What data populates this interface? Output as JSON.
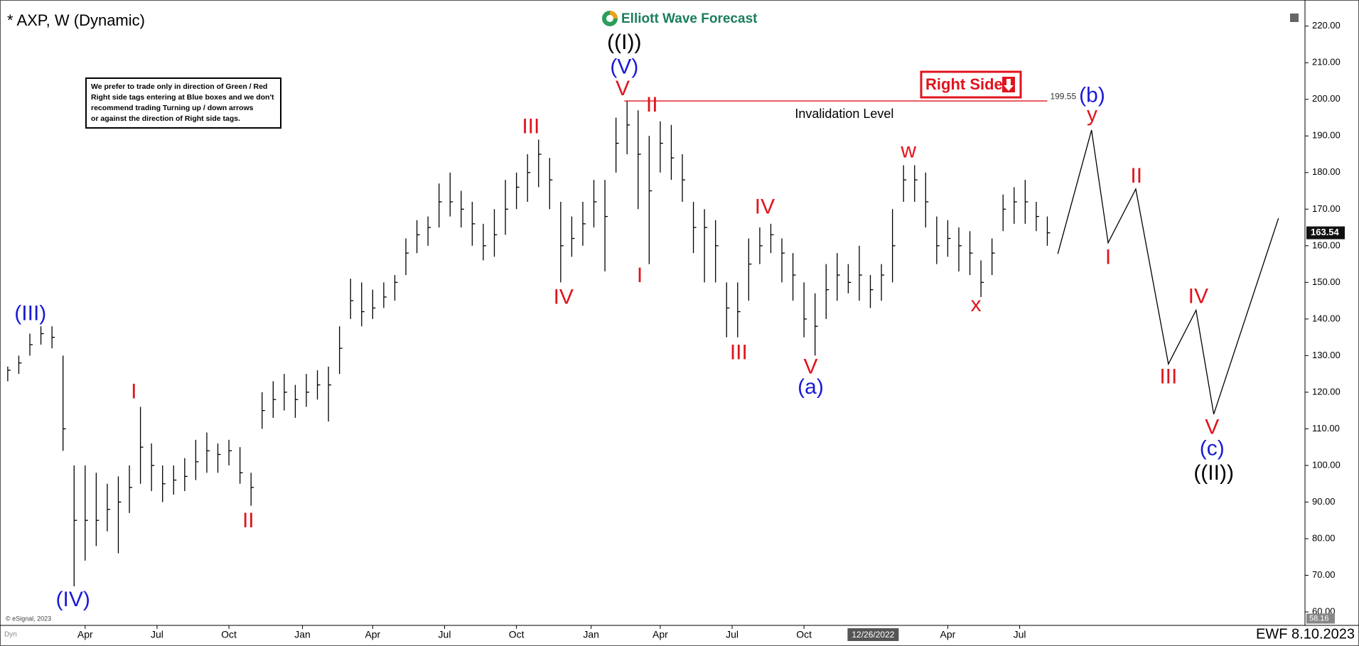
{
  "chart_data": {
    "type": "ohlc",
    "title": "* AXP, W (Dynamic)",
    "logo": "Elliott Wave Forecast",
    "footer": "EWF 8.10.2023",
    "copyright": "© eSignal, 2023",
    "corner_tag": "Dyn",
    "note": [
      "We prefer to trade only in direction of Green / Red",
      "Right side tags entering at Blue boxes and we don't",
      "recommend trading Turning up / down arrows",
      "or against the direction of Right side tags."
    ],
    "right_side_tag": "Right Side",
    "color": "#000000",
    "grid": false,
    "xlim": [
      -2.4,
      233.6
    ],
    "ylim": [
      56.7,
      224.8
    ],
    "xticks": [
      {
        "value": 13,
        "label": "Apr"
      },
      {
        "value": 26,
        "label": "Jul"
      },
      {
        "value": 39,
        "label": "Oct"
      },
      {
        "value": 52.3,
        "label": "Jan"
      },
      {
        "value": 65,
        "label": "Apr"
      },
      {
        "value": 78,
        "label": "Jul"
      },
      {
        "value": 91,
        "label": "Oct"
      },
      {
        "value": 104.5,
        "label": "Jan"
      },
      {
        "value": 117,
        "label": "Apr"
      },
      {
        "value": 130,
        "label": "Jul"
      },
      {
        "value": 143,
        "label": "Oct"
      },
      {
        "value": 169,
        "label": "Apr"
      },
      {
        "value": 182,
        "label": "Jul"
      }
    ],
    "crosshair_date": {
      "value": 155.5,
      "label": "12/26/2022"
    },
    "yticks": [
      {
        "value": 60,
        "label": "60.00"
      },
      {
        "value": 70,
        "label": "70.00"
      },
      {
        "value": 80,
        "label": "80.00"
      },
      {
        "value": 90,
        "label": "90.00"
      },
      {
        "value": 100,
        "label": "100.00"
      },
      {
        "value": 110,
        "label": "110.00"
      },
      {
        "value": 120,
        "label": "120.00"
      },
      {
        "value": 130,
        "label": "130.00"
      },
      {
        "value": 140,
        "label": "140.00"
      },
      {
        "value": 150,
        "label": "150.00"
      },
      {
        "value": 160,
        "label": "160.00"
      },
      {
        "value": 170,
        "label": "170.00"
      },
      {
        "value": 180,
        "label": "180.00"
      },
      {
        "value": 190,
        "label": "190.00"
      },
      {
        "value": 200,
        "label": "200.00"
      },
      {
        "value": 210,
        "label": "210.00"
      },
      {
        "value": 220,
        "label": "220.00"
      }
    ],
    "axis_marker": 58.16,
    "x": [
      -1,
      1,
      3,
      5,
      7,
      9,
      11,
      13,
      15,
      17,
      19,
      21,
      23,
      25,
      27,
      29,
      31,
      33,
      35,
      37,
      39,
      41,
      43,
      45,
      47,
      49,
      51,
      53,
      55,
      57,
      59,
      61,
      63,
      65,
      67,
      69,
      71,
      73,
      75,
      77,
      79,
      81,
      83,
      85,
      87,
      89,
      91,
      93,
      95,
      97,
      99,
      101,
      103,
      105,
      107,
      109,
      111,
      113,
      115,
      117,
      119,
      121,
      123,
      125,
      127,
      129,
      131,
      133,
      135,
      137,
      139,
      141,
      143,
      145,
      147,
      149,
      151,
      153,
      155,
      157,
      159,
      161,
      163,
      165,
      167,
      169,
      171,
      173,
      175,
      177,
      179,
      181,
      183,
      185,
      187
    ],
    "high": [
      127,
      130,
      136,
      138,
      138,
      130,
      100,
      100,
      98,
      95,
      97,
      100,
      116,
      106,
      100,
      100,
      102,
      107,
      109,
      106,
      107,
      105,
      98,
      120,
      123,
      125,
      122,
      125,
      126,
      127,
      138,
      151,
      150,
      148,
      150,
      152,
      162,
      167,
      168,
      177,
      180,
      175,
      172,
      166,
      170,
      178,
      180,
      185,
      189,
      184,
      172,
      168,
      172,
      178,
      178,
      195,
      199.55,
      197,
      190,
      194,
      193,
      185,
      172,
      170,
      167,
      150,
      150,
      162,
      165,
      166,
      162,
      158,
      150,
      147,
      155,
      158,
      155,
      160,
      152,
      155,
      170,
      182,
      182,
      180,
      168,
      167,
      165,
      164,
      156,
      162,
      174,
      176,
      178,
      172,
      168
    ],
    "low": [
      123,
      125,
      130,
      133,
      132,
      104,
      67,
      74,
      78,
      82,
      76,
      87,
      95,
      93,
      90,
      92,
      93,
      96,
      98,
      98,
      100,
      95,
      89,
      110,
      113,
      115,
      113,
      116,
      118,
      112,
      125,
      140,
      138,
      140,
      143,
      145,
      152,
      158,
      160,
      165,
      168,
      165,
      160,
      156,
      157,
      163,
      170,
      172,
      176,
      170,
      150,
      157,
      160,
      165,
      153,
      180,
      185,
      170,
      155,
      180,
      178,
      172,
      158,
      150,
      150,
      135,
      135,
      145,
      155,
      158,
      150,
      145,
      135,
      130,
      140,
      145,
      147,
      145,
      143,
      145,
      150,
      172,
      172,
      165,
      155,
      157,
      153,
      152,
      146,
      152,
      164,
      166,
      166,
      164,
      160
    ],
    "close": [
      126,
      128,
      133,
      136,
      135,
      110,
      85,
      85,
      85,
      88,
      90,
      94,
      105,
      100,
      95,
      96,
      97,
      101,
      104,
      103,
      104,
      98,
      94,
      115,
      118,
      120,
      118,
      120,
      122,
      122,
      132,
      145,
      142,
      143,
      146,
      150,
      158,
      163,
      165,
      172,
      172,
      170,
      166,
      160,
      163,
      170,
      176,
      180,
      185,
      178,
      160,
      162,
      166,
      172,
      168,
      188,
      193,
      185,
      175,
      188,
      184,
      178,
      165,
      165,
      160,
      143,
      142,
      155,
      160,
      163,
      158,
      152,
      140,
      138,
      148,
      152,
      150,
      152,
      148,
      152,
      160,
      178,
      178,
      172,
      160,
      162,
      160,
      158,
      150,
      158,
      170,
      172,
      172,
      168,
      163.54
    ],
    "invalidation": {
      "value": 199.55,
      "label": "Invalidation Level",
      "x_start": 110.5,
      "x_end": 187
    },
    "projection": {
      "x": [
        188.9,
        195.0,
        198.0,
        203.0,
        208.9,
        213.9,
        217.1,
        228.8
      ],
      "y": [
        157.8,
        191.6,
        160.8,
        175.5,
        127.7,
        142.4,
        114.0,
        167.5
      ]
    },
    "annotations": [
      {
        "text": "(III)",
        "x": 3.1,
        "y": 141.2,
        "color": "#1a1ad6"
      },
      {
        "text": "(IV)",
        "x": 10.8,
        "y": 63.1,
        "color": "#1a1ad6"
      },
      {
        "text": "I",
        "x": 21.8,
        "y": 119.9,
        "color": "#e0141e"
      },
      {
        "text": "II",
        "x": 42.5,
        "y": 84.6,
        "color": "#e0141e"
      },
      {
        "text": "III",
        "x": 93.6,
        "y": 192.3,
        "color": "#e0141e"
      },
      {
        "text": "IV",
        "x": 99.5,
        "y": 145.7,
        "color": "#e0141e"
      },
      {
        "text": "((I))",
        "x": 110.5,
        "y": 215.3,
        "color": "#000000"
      },
      {
        "text": "(V)",
        "x": 110.5,
        "y": 208.6,
        "color": "#1a1ad6"
      },
      {
        "text": "V",
        "x": 110.2,
        "y": 202.7,
        "color": "#e0141e"
      },
      {
        "text": "II",
        "x": 115.5,
        "y": 198.2,
        "color": "#e0141e"
      },
      {
        "text": "I",
        "x": 113.3,
        "y": 151.6,
        "color": "#e0141e"
      },
      {
        "text": "III",
        "x": 131.2,
        "y": 130.5,
        "color": "#e0141e"
      },
      {
        "text": "IV",
        "x": 135.9,
        "y": 170.3,
        "color": "#e0141e"
      },
      {
        "text": "V",
        "x": 144.2,
        "y": 126.7,
        "color": "#e0141e"
      },
      {
        "text": "(a)",
        "x": 144.2,
        "y": 121.1,
        "color": "#1a1ad6"
      },
      {
        "text": "w",
        "x": 161.9,
        "y": 185.7,
        "color": "#e0141e"
      },
      {
        "text": "x",
        "x": 174.1,
        "y": 143.6,
        "color": "#e0141e"
      },
      {
        "text": "(b)",
        "x": 195.1,
        "y": 200.8,
        "color": "#1a1ad6"
      },
      {
        "text": "y",
        "x": 195.1,
        "y": 195.6,
        "color": "#e0141e"
      },
      {
        "text": "II",
        "x": 203.1,
        "y": 178.8,
        "color": "#e0141e"
      },
      {
        "text": "I",
        "x": 198.0,
        "y": 156.6,
        "color": "#e0141e"
      },
      {
        "text": "III",
        "x": 208.9,
        "y": 123.9,
        "color": "#e0141e"
      },
      {
        "text": "IV",
        "x": 214.3,
        "y": 145.9,
        "color": "#e0141e"
      },
      {
        "text": "V",
        "x": 216.8,
        "y": 110.2,
        "color": "#e0141e"
      },
      {
        "text": "(c)",
        "x": 216.8,
        "y": 104.3,
        "color": "#1a1ad6"
      },
      {
        "text": "((II))",
        "x": 217.1,
        "y": 97.6,
        "color": "#000000"
      }
    ]
  }
}
